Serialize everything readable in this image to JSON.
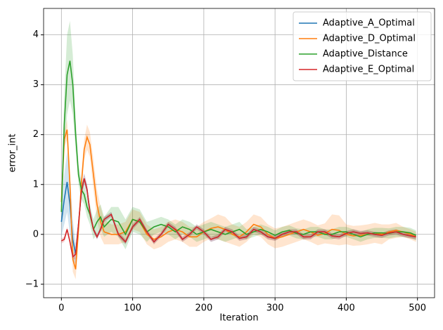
{
  "chart_data": {
    "type": "line",
    "xlabel": "Iteration",
    "ylabel": "error_int",
    "x": [
      0,
      4,
      8,
      12,
      16,
      20,
      24,
      28,
      32,
      36,
      40,
      45,
      50,
      55,
      60,
      70,
      80,
      90,
      100,
      110,
      120,
      130,
      140,
      150,
      160,
      170,
      180,
      190,
      200,
      210,
      220,
      230,
      240,
      250,
      260,
      270,
      280,
      290,
      300,
      310,
      320,
      330,
      340,
      350,
      360,
      370,
      380,
      390,
      400,
      410,
      420,
      430,
      440,
      450,
      460,
      470,
      480,
      490,
      498
    ],
    "series": [
      {
        "name": "Adaptive_A_Optimal",
        "color": "#1f77b4",
        "values": [
          0.25,
          0.7,
          1.05,
          0.6,
          -0.1,
          -0.4,
          0.2,
          0.85,
          1.12,
          0.9,
          0.45,
          0.1,
          -0.05,
          0.1,
          0.3,
          0.4,
          0.0,
          -0.15,
          0.15,
          0.3,
          0.05,
          -0.15,
          0.0,
          0.2,
          0.1,
          -0.1,
          0.0,
          0.15,
          0.05,
          -0.1,
          -0.05,
          0.1,
          0.05,
          -0.08,
          -0.05,
          0.1,
          0.05,
          -0.05,
          -0.08,
          0.0,
          0.05,
          0.05,
          -0.05,
          -0.05,
          0.05,
          0.05,
          -0.03,
          -0.05,
          0.02,
          0.05,
          0.02,
          0.03,
          0.0,
          -0.02,
          0.03,
          0.05,
          0.0,
          -0.03,
          -0.05
        ],
        "spread": [
          0.3,
          0.5,
          0.6,
          0.6,
          0.4,
          0.2,
          0.1,
          0.1,
          0.1,
          0.1,
          0.1,
          0.05,
          0.05,
          0.05,
          0.05,
          0.05,
          0.05,
          0.05,
          0.05,
          0.05,
          0.05,
          0.05,
          0.05,
          0.05,
          0.05,
          0.05,
          0.05,
          0.05,
          0.05,
          0.05,
          0.05,
          0.05,
          0.05,
          0.05,
          0.05,
          0.05,
          0.05,
          0.05,
          0.05,
          0.05,
          0.05,
          0.05,
          0.05,
          0.05,
          0.05,
          0.05,
          0.05,
          0.05,
          0.05,
          0.05,
          0.05,
          0.05,
          0.05,
          0.05,
          0.05,
          0.05,
          0.05,
          0.05,
          0.05
        ]
      },
      {
        "name": "Adaptive_D_Optimal",
        "color": "#ff7f0e",
        "values": [
          0.65,
          1.9,
          2.1,
          1.0,
          -0.5,
          -0.7,
          0.1,
          1.0,
          1.7,
          1.95,
          1.8,
          1.2,
          0.6,
          0.25,
          0.05,
          0.0,
          0.0,
          0.05,
          0.3,
          0.25,
          0.0,
          -0.1,
          -0.05,
          0.05,
          0.1,
          0.05,
          -0.05,
          -0.05,
          0.05,
          0.12,
          0.15,
          0.1,
          0.0,
          -0.05,
          0.05,
          0.2,
          0.15,
          0.0,
          -0.08,
          -0.05,
          0.0,
          0.05,
          0.1,
          0.05,
          -0.02,
          0.02,
          0.1,
          0.08,
          0.0,
          -0.03,
          -0.02,
          0.0,
          0.03,
          0.0,
          0.05,
          0.08,
          0.05,
          0.0,
          -0.05
        ],
        "spread": [
          0.1,
          0.15,
          0.2,
          0.3,
          0.25,
          0.2,
          0.2,
          0.2,
          0.2,
          0.25,
          0.25,
          0.3,
          0.3,
          0.3,
          0.25,
          0.2,
          0.2,
          0.2,
          0.2,
          0.2,
          0.2,
          0.2,
          0.2,
          0.2,
          0.2,
          0.2,
          0.2,
          0.2,
          0.2,
          0.2,
          0.25,
          0.25,
          0.2,
          0.2,
          0.2,
          0.2,
          0.2,
          0.2,
          0.2,
          0.2,
          0.2,
          0.2,
          0.2,
          0.2,
          0.2,
          0.2,
          0.3,
          0.3,
          0.2,
          0.2,
          0.2,
          0.2,
          0.2,
          0.2,
          0.15,
          0.15,
          0.1,
          0.1,
          0.1
        ]
      },
      {
        "name": "Adaptive_Distance",
        "color": "#2ca02c",
        "values": [
          0.45,
          2.2,
          3.2,
          3.48,
          3.0,
          2.0,
          1.2,
          0.9,
          0.8,
          0.55,
          0.4,
          0.1,
          0.25,
          0.35,
          0.15,
          0.3,
          0.25,
          0.0,
          0.3,
          0.25,
          0.05,
          0.15,
          0.2,
          0.15,
          0.05,
          0.15,
          0.1,
          0.0,
          0.05,
          0.1,
          0.05,
          0.0,
          0.05,
          0.1,
          0.0,
          0.05,
          0.1,
          0.05,
          -0.02,
          0.05,
          0.08,
          0.02,
          0.0,
          0.05,
          0.05,
          0.0,
          0.0,
          0.05,
          0.05,
          0.0,
          -0.05,
          0.0,
          0.03,
          0.03,
          0.02,
          0.05,
          0.05,
          0.03,
          -0.02
        ],
        "spread": [
          0.3,
          0.6,
          0.8,
          0.8,
          0.6,
          0.3,
          0.2,
          0.2,
          0.2,
          0.2,
          0.2,
          0.2,
          0.25,
          0.25,
          0.2,
          0.25,
          0.3,
          0.3,
          0.25,
          0.25,
          0.2,
          0.15,
          0.15,
          0.15,
          0.15,
          0.15,
          0.15,
          0.15,
          0.15,
          0.15,
          0.15,
          0.15,
          0.15,
          0.15,
          0.1,
          0.1,
          0.1,
          0.1,
          0.1,
          0.1,
          0.1,
          0.1,
          0.1,
          0.1,
          0.1,
          0.1,
          0.1,
          0.1,
          0.1,
          0.1,
          0.1,
          0.1,
          0.1,
          0.1,
          0.1,
          0.1,
          0.1,
          0.1,
          0.1
        ]
      },
      {
        "name": "Adaptive_E_Optimal",
        "color": "#d62728",
        "values": [
          -0.13,
          -0.1,
          0.1,
          -0.15,
          -0.45,
          -0.4,
          0.2,
          0.85,
          1.12,
          0.9,
          0.45,
          0.1,
          -0.05,
          0.1,
          0.3,
          0.4,
          0.0,
          -0.15,
          0.15,
          0.3,
          0.05,
          -0.15,
          0.0,
          0.2,
          0.1,
          -0.1,
          0.0,
          0.15,
          0.05,
          -0.1,
          -0.05,
          0.1,
          0.05,
          -0.08,
          -0.05,
          0.1,
          0.05,
          -0.05,
          -0.08,
          0.0,
          0.05,
          0.05,
          -0.05,
          -0.05,
          0.05,
          0.05,
          -0.03,
          -0.05,
          0.02,
          0.05,
          0.02,
          0.03,
          0.0,
          -0.02,
          0.03,
          0.05,
          0.0,
          -0.03,
          -0.05
        ],
        "spread": [
          0.05,
          0.05,
          0.05,
          0.05,
          0.05,
          0.1,
          0.1,
          0.1,
          0.1,
          0.1,
          0.1,
          0.05,
          0.05,
          0.05,
          0.05,
          0.05,
          0.05,
          0.05,
          0.05,
          0.05,
          0.05,
          0.05,
          0.05,
          0.05,
          0.05,
          0.05,
          0.05,
          0.05,
          0.05,
          0.05,
          0.05,
          0.05,
          0.05,
          0.05,
          0.05,
          0.05,
          0.05,
          0.05,
          0.05,
          0.05,
          0.05,
          0.05,
          0.05,
          0.05,
          0.05,
          0.05,
          0.05,
          0.05,
          0.05,
          0.05,
          0.05,
          0.05,
          0.05,
          0.05,
          0.05,
          0.05,
          0.05,
          0.05,
          0.05
        ]
      }
    ],
    "xlim": [
      -25,
      524
    ],
    "ylim": [
      -1.27,
      4.53
    ],
    "xticks": [
      0,
      100,
      200,
      300,
      400,
      500
    ],
    "yticks": [
      {
        "value": -1,
        "label": "−1"
      },
      0,
      1,
      2,
      3,
      4
    ],
    "grid": true,
    "legend": "upper right"
  }
}
